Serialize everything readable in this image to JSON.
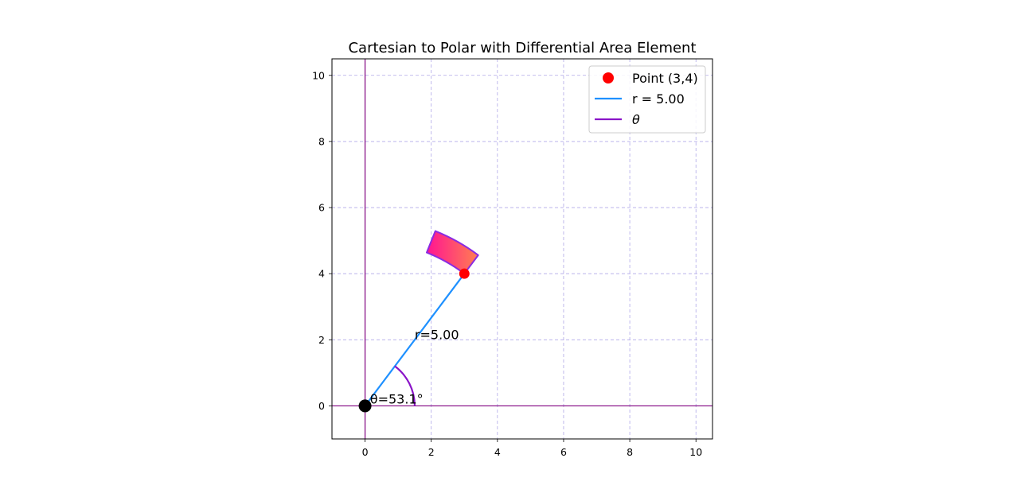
{
  "chart_data": {
    "type": "scatter",
    "title": "Cartesian to Polar with Differential Area Element",
    "xlabel": "",
    "ylabel": "",
    "xlim": [
      -1,
      10.5
    ],
    "ylim": [
      -1,
      10.5
    ],
    "xticks": [
      0,
      2,
      4,
      6,
      8,
      10
    ],
    "yticks": [
      0,
      2,
      4,
      6,
      8,
      10
    ],
    "grid": true,
    "legend_position": "top-right",
    "legend": [
      {
        "label": "Point (3,4)",
        "marker": "circle",
        "color": "#ff0000"
      },
      {
        "label": "r = 5.00",
        "marker": "line",
        "color": "#1e90ff"
      },
      {
        "label": "θ",
        "marker": "line",
        "color": "#8a14c8",
        "italic": true
      }
    ],
    "point": {
      "x": 3,
      "y": 4
    },
    "origin": {
      "x": 0,
      "y": 0
    },
    "radius": 5.0,
    "theta_deg": 53.13,
    "theta_arc_radius": 1.5,
    "area_element": {
      "r_min": 5.0,
      "r_max": 5.7,
      "theta_min_deg": 53.13,
      "theta_max_deg": 68.13
    },
    "annotations": {
      "r_label": {
        "text": "r=5.00",
        "x": 1.5,
        "y": 2.0
      },
      "theta_label": {
        "text": "θ=53.1°",
        "x": 0.15,
        "y": 0.1
      }
    },
    "colors": {
      "axes_lines": "#800080",
      "grid": "#b0a8e8",
      "radius_line": "#1e90ff",
      "theta_arc": "#8a14c8",
      "point": "#ff0000",
      "origin": "#000000",
      "area_fill_start": "#ff1493",
      "area_fill_end": "#ff7f50",
      "area_edge": "#8a2be2"
    }
  }
}
